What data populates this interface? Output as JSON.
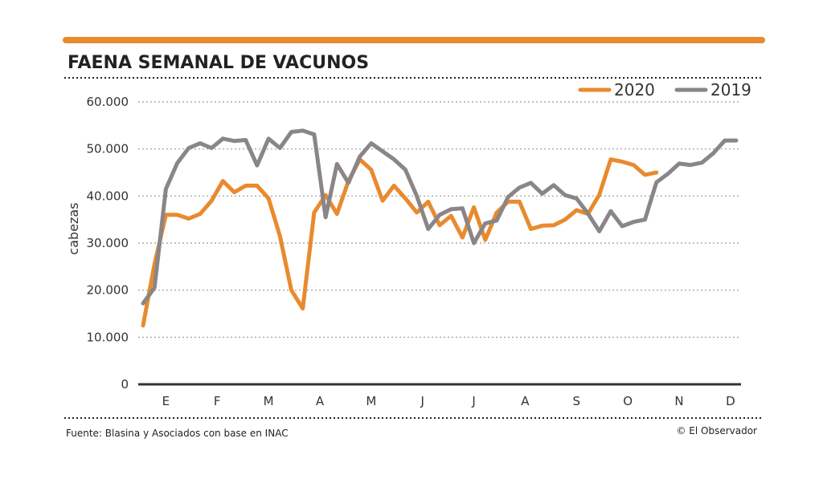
{
  "title": "FAENA SEMANAL DE VACUNOS",
  "source": "Fuente: Blasina y Asociados con base en INAC",
  "credit": "© El Observador",
  "colors": {
    "accent": "#e88a2e",
    "series_2020": "#e88a2e",
    "series_2019": "#8a8587",
    "grid": "#999999",
    "axis": "#333333"
  },
  "chart_data": {
    "type": "line",
    "title": "FAENA SEMANAL DE VACUNOS",
    "xlabel": "",
    "ylabel": "cabezas",
    "ylim": [
      0,
      60000
    ],
    "xlim": [
      0,
      52
    ],
    "grid": true,
    "legend_position": "top-right",
    "month_ticks": [
      {
        "label": "E",
        "x": 2
      },
      {
        "label": "F",
        "x": 6.5
      },
      {
        "label": "M",
        "x": 11
      },
      {
        "label": "A",
        "x": 15.5
      },
      {
        "label": "M",
        "x": 20
      },
      {
        "label": "J",
        "x": 24.5
      },
      {
        "label": "J",
        "x": 29
      },
      {
        "label": "A",
        "x": 33.5
      },
      {
        "label": "S",
        "x": 38
      },
      {
        "label": "O",
        "x": 42.5
      },
      {
        "label": "N",
        "x": 47
      },
      {
        "label": "D",
        "x": 51.5
      }
    ],
    "y_ticks": [
      {
        "label": "0",
        "value": 0
      },
      {
        "label": "10.000",
        "value": 10000
      },
      {
        "label": "20.000",
        "value": 20000
      },
      {
        "label": "30.000",
        "value": 30000
      },
      {
        "label": "40.000",
        "value": 40000
      },
      {
        "label": "50.000",
        "value": 50000
      },
      {
        "label": "60.000",
        "value": 60000
      }
    ],
    "series": [
      {
        "name": "2020",
        "color": "#e88a2e",
        "x": [
          0,
          1,
          2,
          3,
          4,
          5,
          6,
          7,
          8,
          9,
          10,
          11,
          12,
          13,
          14,
          15,
          16,
          17,
          18,
          19,
          20,
          21,
          22,
          23,
          24,
          25,
          26,
          27,
          28,
          29,
          30,
          31,
          32,
          33,
          34,
          35,
          36,
          37,
          38,
          39,
          40,
          41,
          42,
          43,
          44,
          45
        ],
        "values": [
          12500,
          25500,
          36000,
          36000,
          35200,
          36200,
          39000,
          43200,
          40800,
          42200,
          42200,
          39500,
          31500,
          20000,
          16100,
          36500,
          40200,
          36200,
          43200,
          47800,
          45600,
          39000,
          42200,
          39500,
          36500,
          38800,
          33800,
          35800,
          31200,
          37600,
          30700,
          36500,
          38800,
          38800,
          33000,
          33700,
          33800,
          35000,
          37000,
          36200,
          40300,
          47800,
          47300,
          46600,
          44500,
          45000
        ]
      },
      {
        "name": "2019",
        "color": "#8a8587",
        "x": [
          0,
          1,
          2,
          3,
          4,
          5,
          6,
          7,
          8,
          9,
          10,
          11,
          12,
          13,
          14,
          15,
          16,
          17,
          18,
          19,
          20,
          21,
          22,
          23,
          24,
          25,
          26,
          27,
          28,
          29,
          30,
          31,
          32,
          33,
          34,
          35,
          36,
          37,
          38,
          39,
          40,
          41,
          42,
          43,
          44,
          45,
          46,
          47,
          48,
          49,
          50,
          51,
          52
        ],
        "values": [
          17200,
          20500,
          41500,
          47000,
          50200,
          51200,
          50200,
          52200,
          51700,
          51900,
          46500,
          52200,
          50200,
          53600,
          53900,
          53100,
          35500,
          46800,
          42800,
          48400,
          51200,
          49500,
          47800,
          45600,
          40000,
          33000,
          36000,
          37200,
          37400,
          30000,
          34200,
          34800,
          39800,
          41800,
          42800,
          40500,
          42300,
          40200,
          39500,
          36300,
          32500,
          36800,
          33600,
          34500,
          35000,
          42900,
          44700,
          46900,
          46600,
          47100,
          49100,
          51800,
          51800
        ]
      }
    ]
  }
}
